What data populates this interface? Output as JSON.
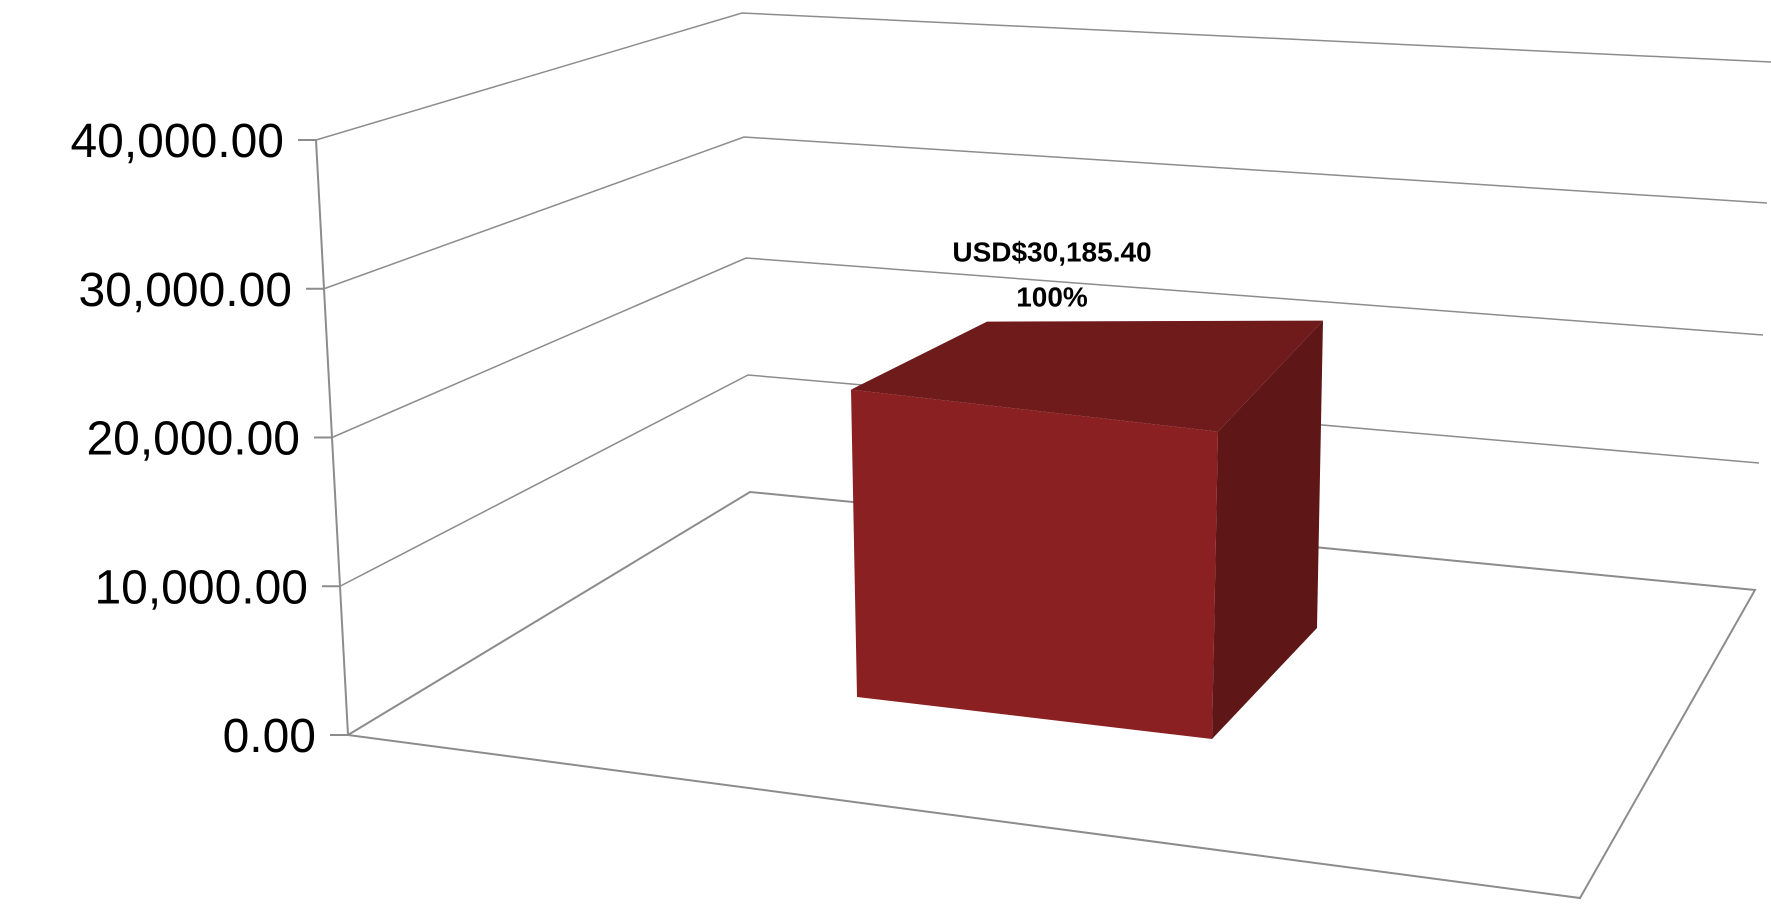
{
  "chart_data": {
    "type": "bar",
    "style": "3d-column",
    "categories": [
      ""
    ],
    "series": [
      {
        "values": [
          30185.4
        ],
        "color": "#8b2022",
        "data_labels": [
          "USD$30,185.40",
          "100%"
        ]
      }
    ],
    "ylim": [
      0,
      40000
    ],
    "y_ticks": [
      0,
      10000,
      20000,
      30000,
      40000
    ],
    "y_tick_labels": [
      "0.00",
      "10,000.00",
      "20,000.00",
      "30,000.00",
      "40,000.00"
    ],
    "grid": true,
    "legend": "none",
    "title": "",
    "xlabel": "",
    "ylabel": ""
  }
}
